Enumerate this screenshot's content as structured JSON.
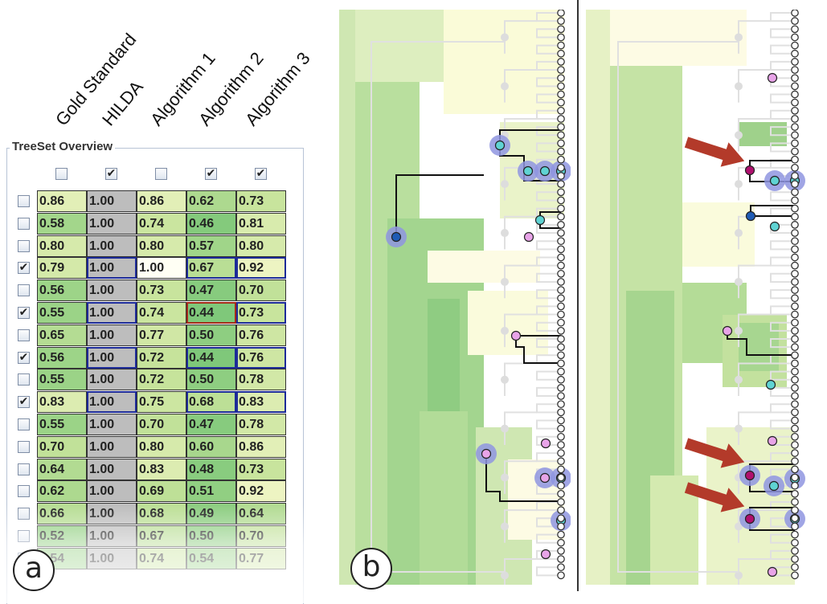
{
  "panel_a": {
    "label": "a",
    "title": "TreeSet Overview",
    "columns": [
      "Gold Standard",
      "HILDA",
      "Algorithm 1",
      "Algorithm 2",
      "Algorithm 3"
    ],
    "column_checked": [
      false,
      true,
      false,
      true,
      true
    ],
    "rows": [
      {
        "checked": false,
        "values": [
          "0.86",
          "1.00",
          "0.86",
          "0.62",
          "0.73"
        ],
        "sel": false,
        "red": -1
      },
      {
        "checked": false,
        "values": [
          "0.58",
          "1.00",
          "0.74",
          "0.46",
          "0.81"
        ],
        "sel": false,
        "red": -1
      },
      {
        "checked": false,
        "values": [
          "0.80",
          "1.00",
          "0.80",
          "0.57",
          "0.80"
        ],
        "sel": false,
        "red": -1
      },
      {
        "checked": true,
        "values": [
          "0.79",
          "1.00",
          "1.00",
          "0.67",
          "0.92"
        ],
        "sel": true,
        "red": -1
      },
      {
        "checked": false,
        "values": [
          "0.56",
          "1.00",
          "0.73",
          "0.47",
          "0.70"
        ],
        "sel": false,
        "red": -1
      },
      {
        "checked": true,
        "values": [
          "0.55",
          "1.00",
          "0.74",
          "0.44",
          "0.73"
        ],
        "sel": true,
        "red": 3
      },
      {
        "checked": false,
        "values": [
          "0.65",
          "1.00",
          "0.77",
          "0.50",
          "0.76"
        ],
        "sel": false,
        "red": -1
      },
      {
        "checked": true,
        "values": [
          "0.56",
          "1.00",
          "0.72",
          "0.44",
          "0.76"
        ],
        "sel": true,
        "red": -1
      },
      {
        "checked": false,
        "values": [
          "0.55",
          "1.00",
          "0.72",
          "0.50",
          "0.78"
        ],
        "sel": false,
        "red": -1
      },
      {
        "checked": true,
        "values": [
          "0.83",
          "1.00",
          "0.75",
          "0.68",
          "0.83"
        ],
        "sel": true,
        "red": -1
      },
      {
        "checked": false,
        "values": [
          "0.55",
          "1.00",
          "0.70",
          "0.47",
          "0.78"
        ],
        "sel": false,
        "red": -1
      },
      {
        "checked": false,
        "values": [
          "0.70",
          "1.00",
          "0.80",
          "0.60",
          "0.86"
        ],
        "sel": false,
        "red": -1
      },
      {
        "checked": false,
        "values": [
          "0.64",
          "1.00",
          "0.83",
          "0.48",
          "0.73"
        ],
        "sel": false,
        "red": -1
      },
      {
        "checked": false,
        "values": [
          "0.62",
          "1.00",
          "0.69",
          "0.51",
          "0.92"
        ],
        "sel": false,
        "red": -1
      },
      {
        "checked": false,
        "values": [
          "0.66",
          "1.00",
          "0.68",
          "0.49",
          "0.64"
        ],
        "sel": false,
        "red": -1
      },
      {
        "checked": false,
        "values": [
          "0.52",
          "1.00",
          "0.67",
          "0.50",
          "0.70"
        ],
        "sel": false,
        "red": -1
      },
      {
        "checked": false,
        "values": [
          "0.54",
          "1.00",
          "0.74",
          "0.54",
          "0.77"
        ],
        "sel": false,
        "red": -1
      }
    ],
    "colors": {
      "low": "#7fc87a",
      "mid": "#c6e39b",
      "high": "#fdfbd2",
      "hilda": "#bdbdbd",
      "select": "#1d2b99",
      "mismatch": "#a52a1a"
    }
  },
  "panel_b": {
    "label": "b",
    "colors": {
      "highlight": "#8f95e0",
      "cyan": "#5fd3d3",
      "pink": "#e8a4e8",
      "blue": "#1f5bb5",
      "magenta": "#b0106e",
      "arrow": "#b33a2a",
      "leaf": "#999999",
      "edge": "#e0e0e0"
    }
  }
}
